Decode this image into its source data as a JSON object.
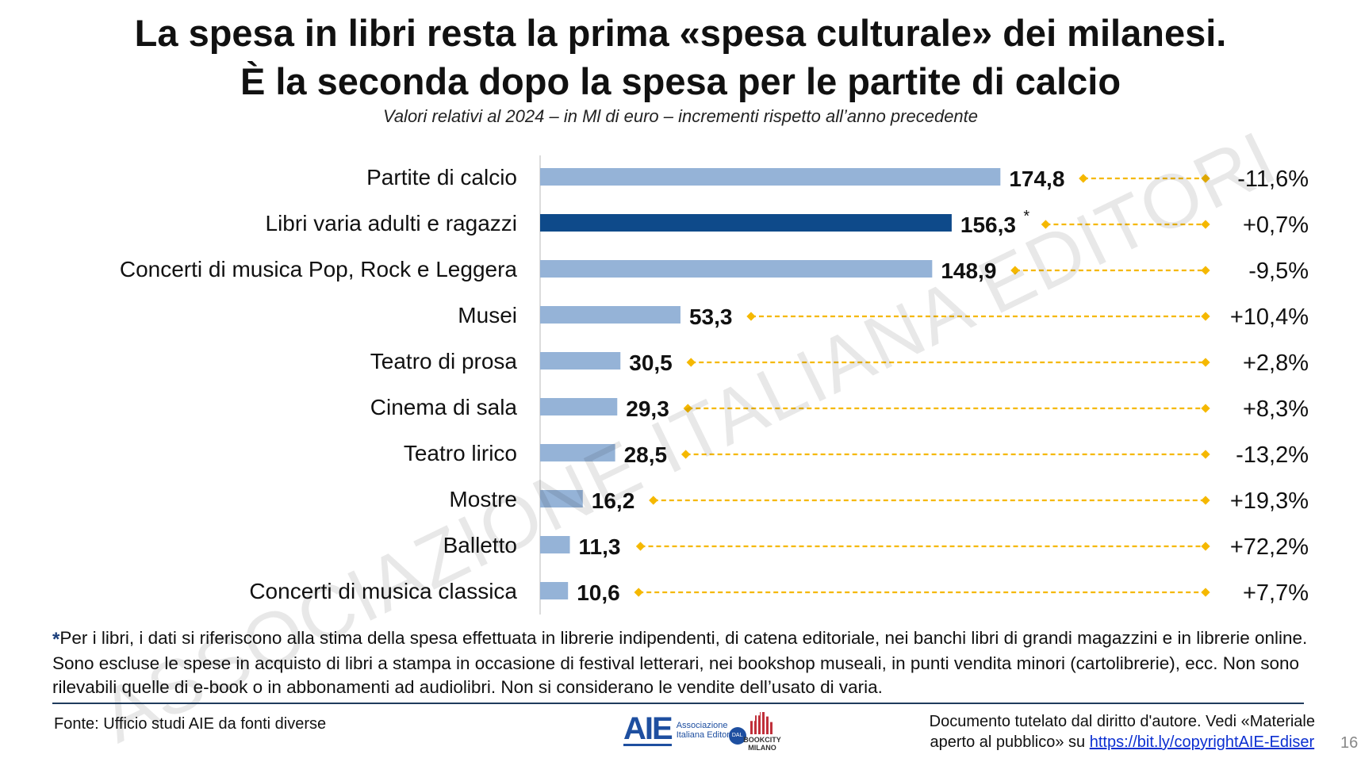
{
  "title_line1": "La spesa in libri resta la prima «spesa culturale» dei milanesi.",
  "title_line2": "È la seconda dopo la spesa per le partite di calcio",
  "subtitle": "Valori relativi al 2024 – in Ml di euro – incrementi rispetto all’anno precedente",
  "watermark": "ASSOCIAZIONE ITALIANA EDITORI",
  "colors": {
    "bar": "#95b3d7",
    "highlight_bar": "#0e4a8a",
    "connector": "#f5b800"
  },
  "chart_data": {
    "type": "bar",
    "orientation": "horizontal",
    "categories": [
      "Partite di calcio",
      "Libri varia adulti e ragazzi",
      "Concerti di musica Pop, Rock e Leggera",
      "Musei",
      "Teatro di prosa",
      "Cinema di sala",
      "Teatro lirico",
      "Mostre",
      "Balletto",
      "Concerti di musica classica"
    ],
    "values": [
      174.8,
      156.3,
      148.9,
      53.3,
      30.5,
      29.3,
      28.5,
      16.2,
      11.3,
      10.6
    ],
    "value_labels": [
      "174,8",
      "156,3",
      "148,9",
      "53,3",
      "30,5",
      "29,3",
      "28,5",
      "16,2",
      "11,3",
      "10,6"
    ],
    "value_label_marks": [
      "",
      "*",
      "",
      "",
      "",
      "",
      "",
      "",
      "",
      ""
    ],
    "changes": [
      "-11,6%",
      "+0,7%",
      "-9,5%",
      "+10,4%",
      "+2,8%",
      "+8,3%",
      "-13,2%",
      "+19,3%",
      "+72,2%",
      "+7,7%"
    ],
    "highlight_index": 1,
    "grid": false
  },
  "footnote": {
    "mark": "*",
    "text": "Per i libri, i dati si riferiscono alla stima della spesa effettuata in librerie indipendenti, di catena editoriale, nei banchi libri di grandi magazzini e in librerie online. Sono escluse le spese in acquisto di libri a stampa in occasione di festival letterari, nei bookshop museali, in punti vendita minori (cartolibrerie), ecc. Non sono rilevabili quelle di e-book o in abbonamenti ad audiolibri. Non si considerano le vendite dell’usato di varia."
  },
  "source": "Fonte: Ufficio studi AIE da fonti diverse",
  "logos": {
    "aie": "AIE",
    "aie_text": "Associazione Italiana Editori",
    "aie_seal": "DAL 1869",
    "bookcity": "BOOKCITY MILANO"
  },
  "copyright": {
    "text1": "Documento tutelato dal diritto d'autore. Vedi «Materiale",
    "text2": "aperto al pubblico» su ",
    "link": "https://bit.ly/copyrightAIE-Ediser"
  },
  "page_number": "16"
}
